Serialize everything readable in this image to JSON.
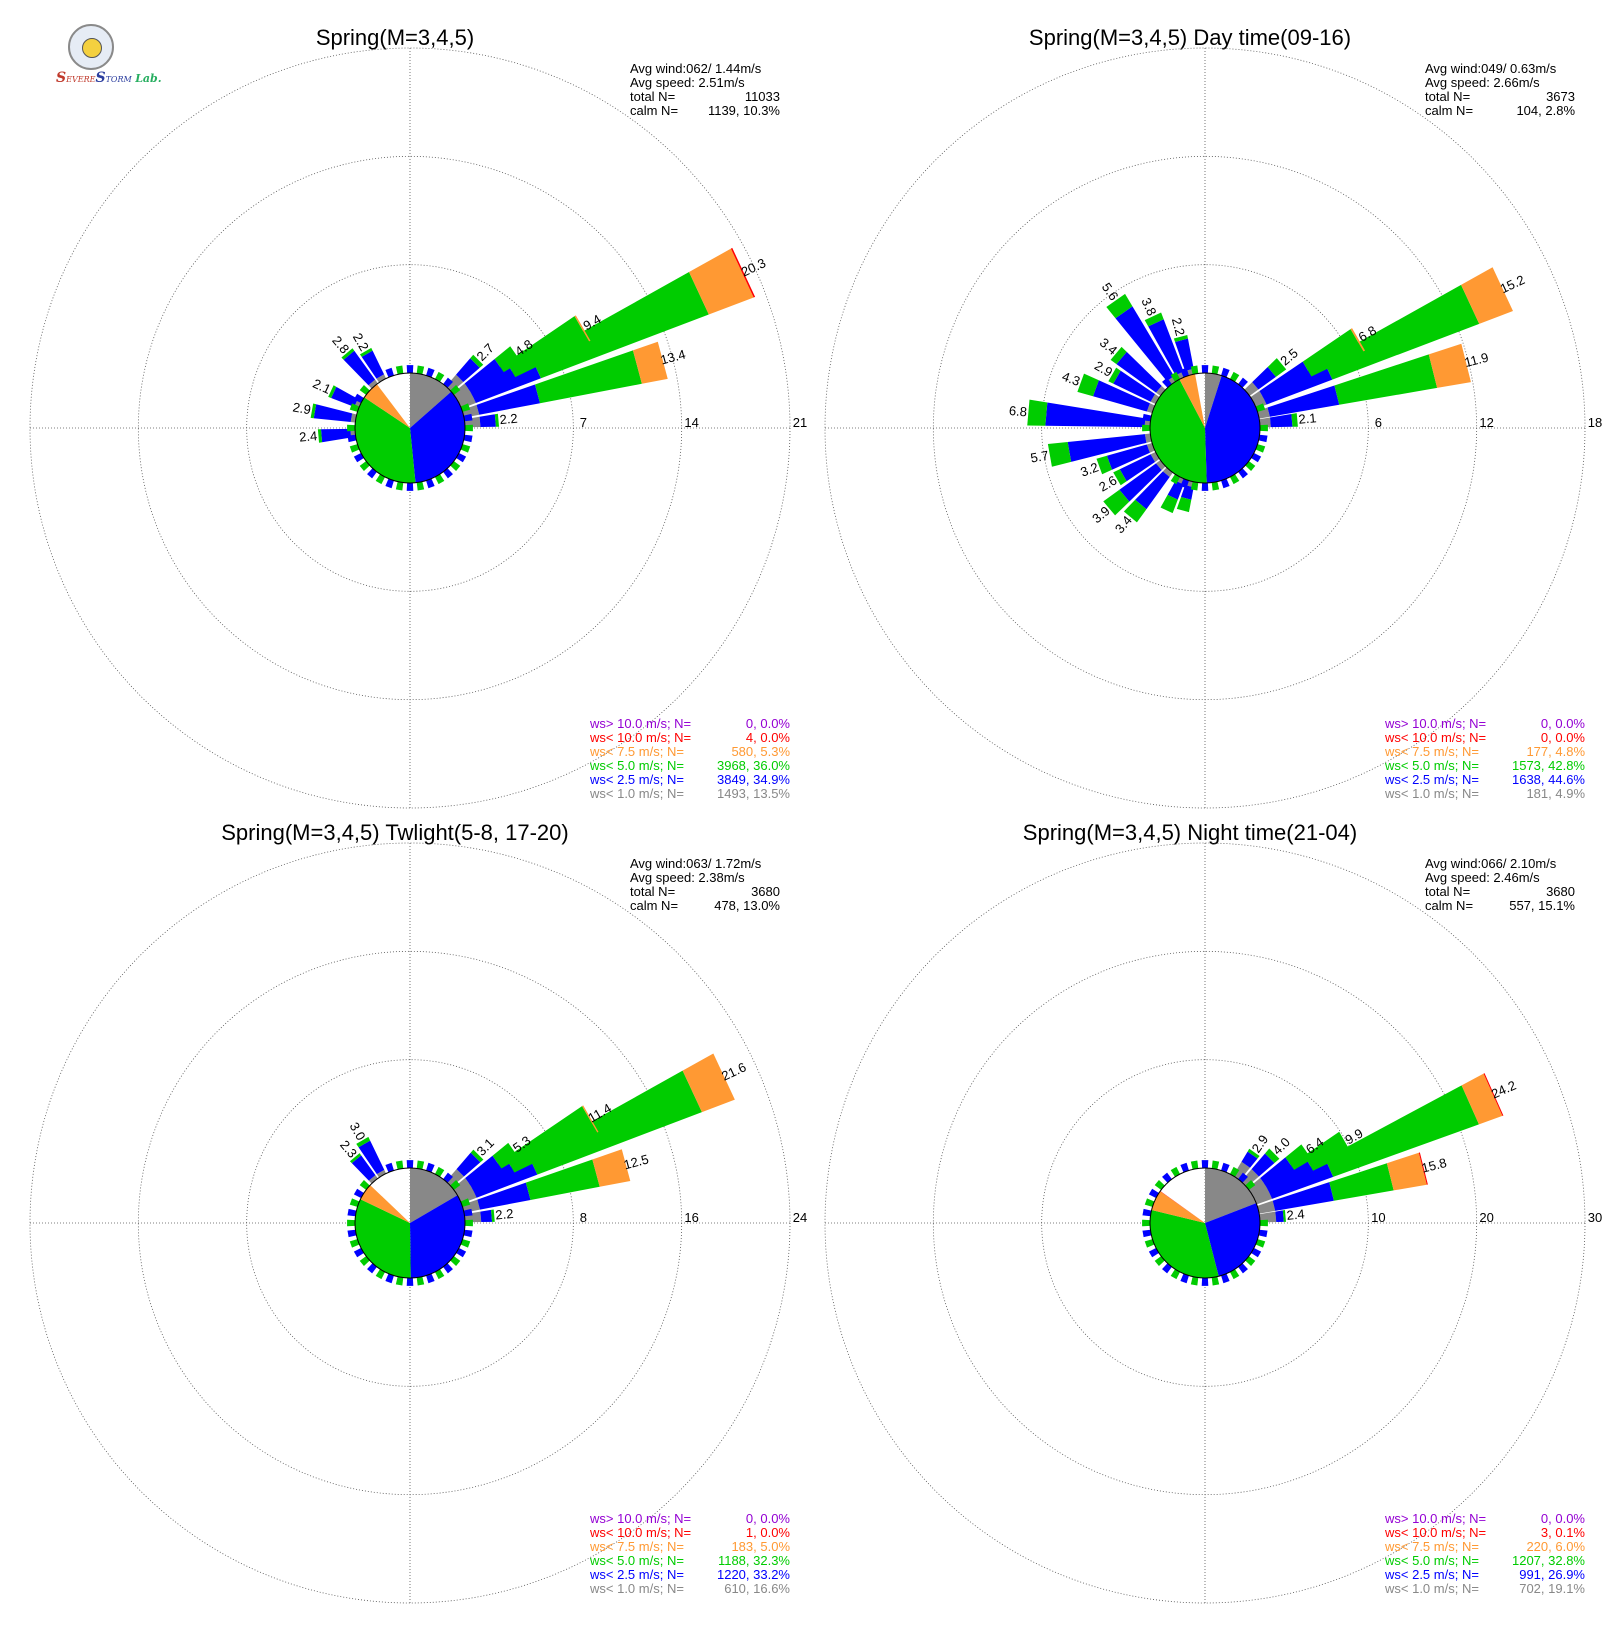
{
  "logo": {
    "s1": "S",
    "evere": "EVERE",
    "s2": "S",
    "torm": "TORM",
    "lab": "Lab."
  },
  "chart_data": [
    {
      "type": "windrose",
      "title": "Spring(M=3,4,5)",
      "rmax": 21,
      "rings": [
        7,
        14,
        21
      ],
      "stats": [
        {
          "label": "Avg wind:062/ 1.44m/s"
        },
        {
          "label": "Avg speed: 2.51m/s"
        },
        {
          "label": "total N=",
          "value": "11033"
        },
        {
          "label": "calm N=",
          "value": "1139,  10.3%"
        }
      ],
      "legend": [
        {
          "label": "ws> 10.0 m/s; N=",
          "value": "0,  0.0%",
          "color": "#9400d3"
        },
        {
          "label": "ws< 10.0 m/s; N=",
          "value": "4,  0.0%",
          "color": "#ff0000"
        },
        {
          "label": "ws<  7.5 m/s; N=",
          "value": "580,  5.3%",
          "color": "#ff9933"
        },
        {
          "label": "ws<  5.0 m/s; N=",
          "value": "3968, 36.0%",
          "color": "#00cc00"
        },
        {
          "label": "ws<  2.5 m/s; N=",
          "value": "3849, 34.9%",
          "color": "#0000ff"
        },
        {
          "label": "ws<  1.0 m/s; N=",
          "value": "1493, 13.5%",
          "color": "#888888"
        }
      ],
      "pie": [
        13.5,
        34.9,
        36.0,
        5.3,
        0.0,
        0.0
      ],
      "bars": [
        {
          "dir": 65,
          "total": 20.3,
          "label": "20.3",
          "bands": [
            1.0,
            5.5,
            17.1,
            20.2,
            20.3
          ]
        },
        {
          "dir": 60,
          "total": 9.4,
          "label": "9.4",
          "bands": [
            1.0,
            4.0,
            9.3,
            9.4
          ]
        },
        {
          "dir": 75,
          "total": 13.4,
          "label": "13.4",
          "bands": [
            1.0,
            5.0,
            11.7,
            13.4
          ]
        },
        {
          "dir": 55,
          "total": 4.8,
          "label": "4.8",
          "bands": [
            1.0,
            3.5,
            4.8
          ]
        },
        {
          "dir": 45,
          "total": 2.7,
          "label": "2.7",
          "bands": [
            1.0,
            2.4,
            2.7
          ]
        },
        {
          "dir": 85,
          "total": 2.2,
          "label": "2.2",
          "bands": [
            1.0,
            2.0,
            2.2
          ]
        },
        {
          "dir": 330,
          "total": 2.2,
          "label": "2.2",
          "bands": [
            0.3,
            2.0,
            2.2
          ]
        },
        {
          "dir": 320,
          "total": 2.8,
          "label": "2.8",
          "bands": [
            0.3,
            2.6,
            2.8
          ]
        },
        {
          "dir": 295,
          "total": 2.1,
          "label": "2.1",
          "bands": [
            0.3,
            1.9,
            2.1
          ]
        },
        {
          "dir": 280,
          "total": 2.9,
          "label": "2.9",
          "bands": [
            0.3,
            2.7,
            2.9
          ]
        },
        {
          "dir": 265,
          "total": 2.4,
          "label": "2.4",
          "bands": [
            0.3,
            2.2,
            2.4
          ]
        }
      ]
    },
    {
      "type": "windrose",
      "title": "Spring(M=3,4,5) Day time(09-16)",
      "rmax": 18,
      "rings": [
        6,
        12,
        18
      ],
      "stats": [
        {
          "label": "Avg wind:049/ 0.63m/s"
        },
        {
          "label": "Avg speed: 2.66m/s"
        },
        {
          "label": "total N=",
          "value": "3673"
        },
        {
          "label": "calm N=",
          "value": "104,   2.8%"
        }
      ],
      "legend": [
        {
          "label": "ws> 10.0 m/s; N=",
          "value": "0,  0.0%",
          "color": "#9400d3"
        },
        {
          "label": "ws< 10.0 m/s; N=",
          "value": "0,  0.0%",
          "color": "#ff0000"
        },
        {
          "label": "ws<  7.5 m/s; N=",
          "value": "177,  4.8%",
          "color": "#ff9933"
        },
        {
          "label": "ws<  5.0 m/s; N=",
          "value": "1573, 42.8%",
          "color": "#00cc00"
        },
        {
          "label": "ws<  2.5 m/s; N=",
          "value": "1638, 44.6%",
          "color": "#0000ff"
        },
        {
          "label": "ws<  1.0 m/s; N=",
          "value": "181,  4.9%",
          "color": "#888888"
        }
      ],
      "pie": [
        4.9,
        44.6,
        42.8,
        4.8,
        0.0,
        0.0
      ],
      "bars": [
        {
          "dir": 65,
          "total": 15.2,
          "label": "15.2",
          "bands": [
            0.6,
            4.5,
            13.2,
            15.2
          ]
        },
        {
          "dir": 60,
          "total": 6.8,
          "label": "6.8",
          "bands": [
            0.6,
            3.5,
            6.7,
            6.8
          ]
        },
        {
          "dir": 76,
          "total": 11.9,
          "label": "11.9",
          "bands": [
            0.6,
            4.5,
            10.0,
            11.9
          ]
        },
        {
          "dir": 50,
          "total": 2.5,
          "label": "2.5",
          "bands": [
            0.6,
            1.8,
            2.5
          ]
        },
        {
          "dir": 85,
          "total": 2.1,
          "label": "2.1",
          "bands": [
            0.6,
            1.8,
            2.1
          ]
        },
        {
          "dir": 325,
          "total": 5.6,
          "label": "5.6",
          "bands": [
            0.3,
            4.8,
            5.6
          ]
        },
        {
          "dir": 335,
          "total": 3.8,
          "label": "3.8",
          "bands": [
            0.3,
            3.4,
            3.8
          ]
        },
        {
          "dir": 345,
          "total": 2.2,
          "label": "2.2",
          "bands": [
            0.3,
            2.0,
            2.2
          ]
        },
        {
          "dir": 310,
          "total": 3.4,
          "label": "3.4",
          "bands": [
            0.3,
            3.0,
            3.4
          ]
        },
        {
          "dir": 300,
          "total": 2.9,
          "label": "2.9",
          "bands": [
            0.3,
            2.6,
            2.9
          ]
        },
        {
          "dir": 290,
          "total": 4.3,
          "label": "4.3",
          "bands": [
            0.3,
            3.4,
            4.3
          ]
        },
        {
          "dir": 275,
          "total": 6.8,
          "label": "6.8",
          "bands": [
            0.3,
            5.8,
            6.8
          ]
        },
        {
          "dir": 260,
          "total": 5.7,
          "label": "5.7",
          "bands": [
            0.3,
            4.6,
            5.7
          ]
        },
        {
          "dir": 250,
          "total": 3.2,
          "label": "3.2",
          "bands": [
            0.3,
            2.6,
            3.2
          ]
        },
        {
          "dir": 240,
          "total": 2.6,
          "label": "2.6",
          "bands": [
            0.3,
            2.2,
            2.6
          ]
        },
        {
          "dir": 230,
          "total": 3.9,
          "label": "3.9",
          "bands": [
            0.3,
            2.8,
            3.9
          ]
        },
        {
          "dir": 220,
          "total": 3.4,
          "label": "3.4",
          "bands": [
            0.3,
            2.5,
            3.4
          ]
        },
        {
          "dir": 205,
          "total": 2.0,
          "label": "",
          "bands": [
            0.3,
            1.2,
            2.0
          ]
        },
        {
          "dir": 195,
          "total": 1.7,
          "label": "",
          "bands": [
            0.3,
            1.0,
            1.7
          ]
        }
      ]
    },
    {
      "type": "windrose",
      "title": "Spring(M=3,4,5) Twlight(5-8, 17-20)",
      "rmax": 24,
      "rings": [
        8,
        16,
        24
      ],
      "stats": [
        {
          "label": "Avg wind:063/ 1.72m/s"
        },
        {
          "label": "Avg speed: 2.38m/s"
        },
        {
          "label": "total N=",
          "value": "3680"
        },
        {
          "label": "calm N=",
          "value": "478,  13.0%"
        }
      ],
      "legend": [
        {
          "label": "ws> 10.0 m/s; N=",
          "value": "0,  0.0%",
          "color": "#9400d3"
        },
        {
          "label": "ws< 10.0 m/s; N=",
          "value": "1,  0.0%",
          "color": "#ff0000"
        },
        {
          "label": "ws<  7.5 m/s; N=",
          "value": "183,  5.0%",
          "color": "#ff9933"
        },
        {
          "label": "ws<  5.0 m/s; N=",
          "value": "1188, 32.3%",
          "color": "#00cc00"
        },
        {
          "label": "ws<  2.5 m/s; N=",
          "value": "1220, 33.2%",
          "color": "#0000ff"
        },
        {
          "label": "ws<  1.0 m/s; N=",
          "value": "610, 16.6%",
          "color": "#888888"
        }
      ],
      "pie": [
        16.6,
        33.2,
        32.3,
        5.0,
        0.0,
        0.0
      ],
      "bars": [
        {
          "dir": 65,
          "total": 21.6,
          "label": "21.6",
          "bands": [
            1.2,
            6.0,
            19.0,
            21.6
          ]
        },
        {
          "dir": 60,
          "total": 11.4,
          "label": "11.4",
          "bands": [
            1.2,
            4.5,
            11.3,
            11.4
          ]
        },
        {
          "dir": 75,
          "total": 12.5,
          "label": "12.5",
          "bands": [
            1.2,
            5.0,
            10.2,
            12.5
          ]
        },
        {
          "dir": 55,
          "total": 5.3,
          "label": "5.3",
          "bands": [
            1.2,
            3.8,
            5.3
          ]
        },
        {
          "dir": 45,
          "total": 3.1,
          "label": "3.1",
          "bands": [
            1.2,
            2.8,
            3.1
          ]
        },
        {
          "dir": 85,
          "total": 2.2,
          "label": "2.2",
          "bands": [
            1.2,
            2.0,
            2.2
          ]
        },
        {
          "dir": 330,
          "total": 3.0,
          "label": "3.0",
          "bands": [
            0.3,
            2.7,
            3.0
          ]
        },
        {
          "dir": 320,
          "total": 2.3,
          "label": "2.3",
          "bands": [
            0.3,
            2.1,
            2.3
          ]
        }
      ]
    },
    {
      "type": "windrose",
      "title": "Spring(M=3,4,5) Night time(21-04)",
      "rmax": 30,
      "rings": [
        10,
        20,
        30
      ],
      "stats": [
        {
          "label": "Avg wind:066/ 2.10m/s"
        },
        {
          "label": "Avg speed: 2.46m/s"
        },
        {
          "label": "total N=",
          "value": "3680"
        },
        {
          "label": "calm N=",
          "value": "557,  15.1%"
        }
      ],
      "legend": [
        {
          "label": "ws> 10.0 m/s; N=",
          "value": "0,  0.0%",
          "color": "#9400d3"
        },
        {
          "label": "ws< 10.0 m/s; N=",
          "value": "3,  0.1%",
          "color": "#ff0000"
        },
        {
          "label": "ws<  7.5 m/s; N=",
          "value": "220,  6.0%",
          "color": "#ff9933"
        },
        {
          "label": "ws<  5.0 m/s; N=",
          "value": "1207, 32.8%",
          "color": "#00cc00"
        },
        {
          "label": "ws<  2.5 m/s; N=",
          "value": "991, 26.9%",
          "color": "#0000ff"
        },
        {
          "label": "ws<  1.0 m/s; N=",
          "value": "702, 19.1%",
          "color": "#888888"
        }
      ],
      "pie": [
        19.1,
        26.9,
        32.8,
        6.0,
        0.1,
        0.0
      ],
      "bars": [
        {
          "dir": 66,
          "total": 24.2,
          "label": "24.2",
          "bands": [
            1.5,
            7.5,
            21.8,
            24.1,
            24.2
          ]
        },
        {
          "dir": 60,
          "total": 9.9,
          "label": "9.9",
          "bands": [
            1.5,
            6.0,
            9.9
          ]
        },
        {
          "dir": 76,
          "total": 15.8,
          "label": "15.8",
          "bands": [
            1.5,
            7.0,
            12.6,
            15.7,
            15.8
          ]
        },
        {
          "dir": 55,
          "total": 6.4,
          "label": "6.4",
          "bands": [
            1.5,
            4.5,
            6.4
          ]
        },
        {
          "dir": 45,
          "total": 4.0,
          "label": "4.0",
          "bands": [
            1.5,
            3.4,
            4.0
          ]
        },
        {
          "dir": 35,
          "total": 2.9,
          "label": "2.9",
          "bands": [
            1.5,
            2.6,
            2.9
          ]
        },
        {
          "dir": 85,
          "total": 2.4,
          "label": "2.4",
          "bands": [
            1.5,
            2.2,
            2.4
          ]
        }
      ]
    }
  ]
}
